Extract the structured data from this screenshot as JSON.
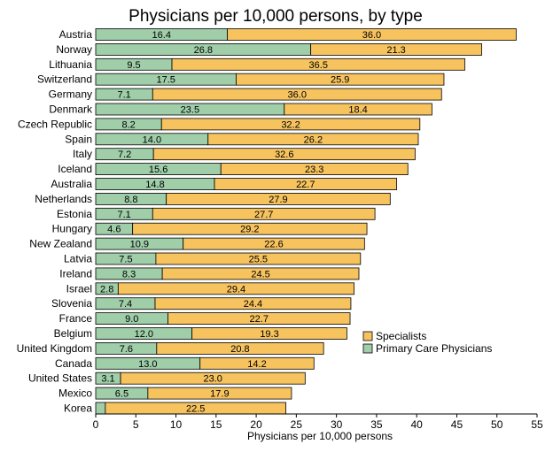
{
  "chart_data": {
    "type": "bar",
    "orientation": "horizontal",
    "stacked": true,
    "title": "Physicians per 10,000 persons, by type",
    "xlabel": "Physicians per 10,000 persons",
    "ylabel": "",
    "xlim": [
      0,
      55
    ],
    "xticks": [
      0,
      5,
      10,
      15,
      20,
      25,
      30,
      35,
      40,
      45,
      50,
      55
    ],
    "grid": false,
    "legend_position": "right",
    "categories": [
      "Austria",
      "Norway",
      "Lithuania",
      "Switzerland",
      "Germany",
      "Denmark",
      "Czech Republic",
      "Spain",
      "Italy",
      "Iceland",
      "Australia",
      "Netherlands",
      "Estonia",
      "Hungary",
      "New Zealand",
      "Latvia",
      "Ireland",
      "Israel",
      "Slovenia",
      "France",
      "Belgium",
      "United Kingdom",
      "Canada",
      "United States",
      "Mexico",
      "Korea"
    ],
    "series": [
      {
        "name": "Primary Care Physicians",
        "color": "#9fcea9",
        "values": [
          16.4,
          26.8,
          9.5,
          17.5,
          7.1,
          23.5,
          8.2,
          14.0,
          7.2,
          15.6,
          14.8,
          8.8,
          7.1,
          4.6,
          10.9,
          7.5,
          8.3,
          2.8,
          7.4,
          9.0,
          12.0,
          7.6,
          13.0,
          3.1,
          6.5,
          1.2
        ],
        "labels": [
          "16.4",
          "26.8",
          "9.5",
          "17.5",
          "7.1",
          "23.5",
          "8.2",
          "14.0",
          "7.2",
          "15.6",
          "14.8",
          "8.8",
          "7.1",
          "4.6",
          "10.9",
          "7.5",
          "8.3",
          "2.8",
          "7.4",
          "9.0",
          "12.0",
          "7.6",
          "13.0",
          "3.1",
          "6.5",
          ""
        ]
      },
      {
        "name": "Specialists",
        "color": "#f6c35e",
        "values": [
          36.0,
          21.3,
          36.5,
          25.9,
          36.0,
          18.4,
          32.2,
          26.2,
          32.6,
          23.3,
          22.7,
          27.9,
          27.7,
          29.2,
          22.6,
          25.5,
          24.5,
          29.4,
          24.4,
          22.7,
          19.3,
          20.8,
          14.2,
          23.0,
          17.9,
          22.5
        ],
        "labels": [
          "36.0",
          "21.3",
          "36.5",
          "25.9",
          "36.0",
          "18.4",
          "32.2",
          "26.2",
          "32.6",
          "23.3",
          "22.7",
          "27.9",
          "27.7",
          "29.2",
          "22.6",
          "25.5",
          "24.5",
          "29.4",
          "24.4",
          "22.7",
          "19.3",
          "20.8",
          "14.2",
          "23.0",
          "17.9",
          "22.5"
        ]
      }
    ],
    "legend_entries": [
      "Specialists",
      "Primary Care Physicians"
    ]
  }
}
